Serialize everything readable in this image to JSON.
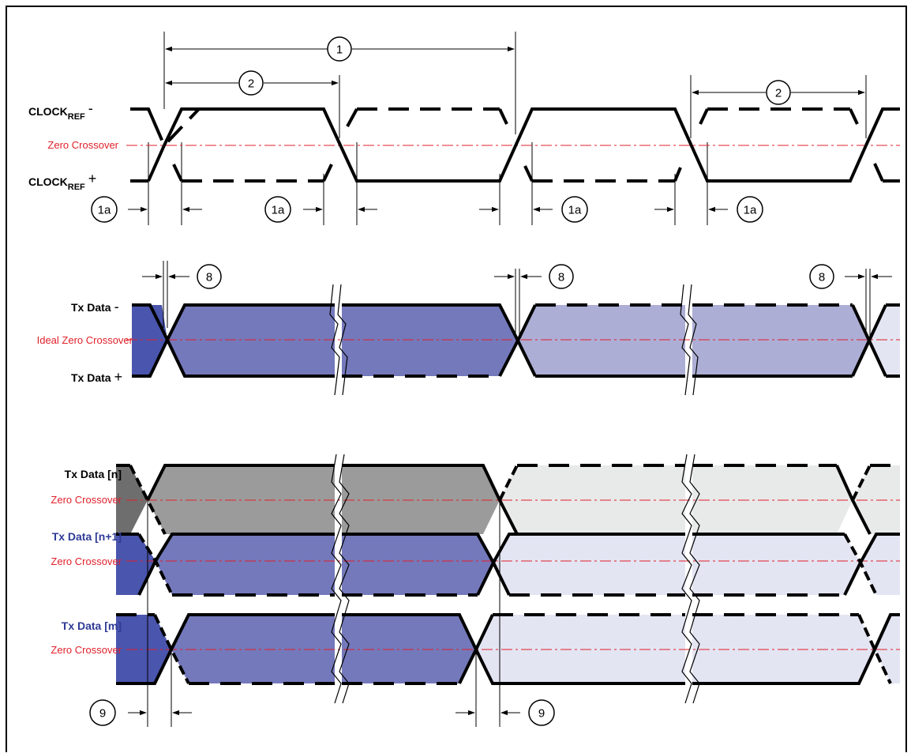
{
  "labels": {
    "clock_minus_main": "CLOCK",
    "clock_minus_sub": "REF",
    "clock_minus_sign": "-",
    "clock_plus_main": "CLOCK",
    "clock_plus_sub": "REF",
    "clock_plus_sign": "+",
    "zero_crossover": "Zero Crossover",
    "ideal_zero_crossover": "Ideal Zero Crossover",
    "tx_data_minus": "Tx Data",
    "tx_data_minus_sign": "-",
    "tx_data_plus": "Tx Data",
    "tx_data_plus_sign": "+",
    "tx_data_n": "Tx Data [n]",
    "tx_data_n1": "Tx Data [n+1]",
    "tx_data_m": "Tx Data [m]"
  },
  "markers": {
    "m1": "1",
    "m2": "2",
    "m1a": "1a",
    "m8": "8",
    "m9": "9"
  },
  "colors": {
    "blue_dark": "#4a55ad",
    "blue_mid": "#7479bb",
    "blue_light": "#adaed5",
    "blue_pale": "#e4e5f3",
    "gray_dark": "#6e6e6e",
    "gray_mid": "#9b9b9b",
    "gray_pale": "#e8e9e9",
    "crossover_red": "#e0202a"
  }
}
